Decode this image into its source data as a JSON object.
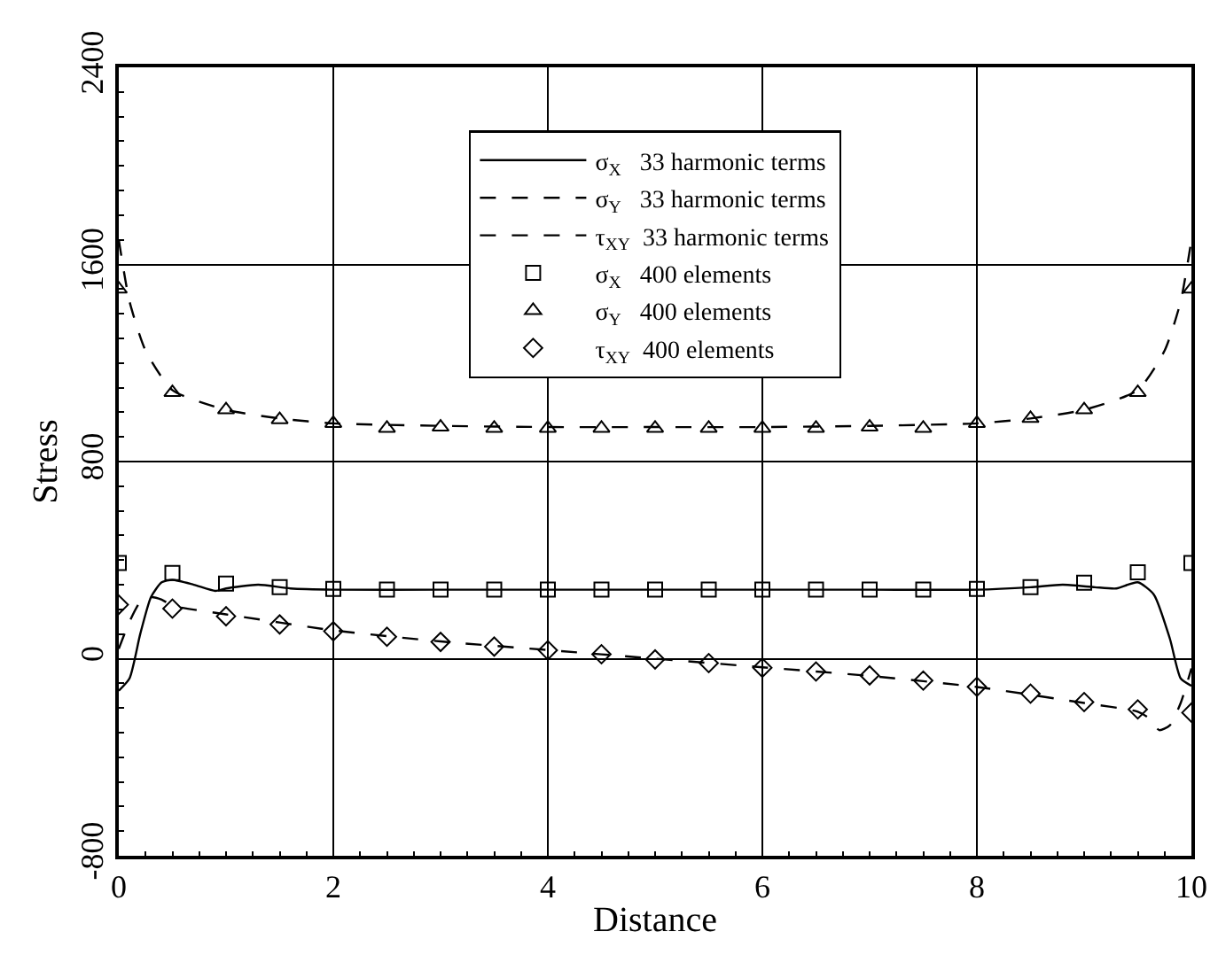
{
  "chart_data": {
    "type": "line",
    "xlabel": "Distance",
    "ylabel": "Stress",
    "xlim": [
      0,
      10
    ],
    "xticks": [
      0,
      2,
      4,
      6,
      8,
      10
    ],
    "ylim": [
      -800,
      2400
    ],
    "yticks": [
      -800,
      0,
      800,
      1600,
      2400
    ],
    "grid": true,
    "legend": "top",
    "series": [
      {
        "name": "σ$_{X}$   33 harmonic terms",
        "color": "#000000",
        "line_style": "solid",
        "marker": "none",
        "x": [
          0,
          0.1,
          0.2,
          0.3,
          0.4,
          0.5,
          0.7,
          0.9,
          1,
          1.3,
          1.6,
          2,
          3,
          4,
          5,
          6,
          7,
          8,
          8.5,
          8.8,
          9.1,
          9.3,
          9.5,
          9.65,
          9.8,
          9.9,
          10
        ],
        "values": [
          -130,
          -80,
          100,
          250,
          310,
          320,
          300,
          275,
          285,
          300,
          285,
          280,
          280,
          280,
          280,
          280,
          280,
          280,
          290,
          300,
          290,
          285,
          310,
          260,
          80,
          -80,
          -110
        ]
      },
      {
        "name": "σ$_{Y}$   33 harmonic terms",
        "color": "#000000",
        "line_style": "dashed",
        "marker": "none",
        "x": [
          0,
          0.1,
          0.25,
          0.5,
          1,
          1.5,
          2,
          3,
          4,
          5,
          6,
          7,
          8,
          8.5,
          9,
          9.5,
          9.75,
          9.9,
          10
        ],
        "values": [
          1700,
          1450,
          1250,
          1090,
          1010,
          975,
          955,
          945,
          940,
          940,
          940,
          945,
          955,
          975,
          1010,
          1090,
          1250,
          1450,
          1700
        ]
      },
      {
        "name": "τ$_{XY}$  33 harmonic terms",
        "color": "#000000",
        "line_style": "dashed",
        "marker": "none",
        "x": [
          0,
          0.1,
          0.2,
          0.3,
          0.4,
          0.5,
          1,
          2,
          3,
          4,
          5,
          6,
          7,
          8,
          9,
          9.5,
          9.6,
          9.7,
          9.8,
          9.9,
          10
        ],
        "values": [
          40,
          150,
          230,
          250,
          240,
          215,
          180,
          115,
          70,
          35,
          0,
          -35,
          -70,
          -115,
          -180,
          -215,
          -240,
          -290,
          -270,
          -180,
          -40
        ]
      },
      {
        "name": "σ$_{X}$   400 elements",
        "color": "#000000",
        "type": "scatter",
        "marker": "square",
        "x": [
          0,
          0.5,
          1,
          1.5,
          2,
          2.5,
          3,
          3.5,
          4,
          4.5,
          5,
          5.5,
          6,
          6.5,
          7,
          7.5,
          8,
          8.5,
          9,
          9.5,
          10
        ],
        "values": [
          388,
          348,
          305,
          290,
          283,
          280,
          280,
          280,
          280,
          280,
          280,
          280,
          280,
          280,
          280,
          280,
          283,
          290,
          308,
          351,
          388
        ]
      },
      {
        "name": "σ$_{Y}$   400 elements",
        "color": "#000000",
        "type": "scatter",
        "marker": "triangle",
        "x": [
          0,
          0.5,
          1,
          1.5,
          2,
          2.5,
          3,
          3.5,
          4,
          4.5,
          5,
          5.5,
          6,
          6.5,
          7,
          7.5,
          8,
          8.5,
          9,
          9.5,
          10
        ],
        "values": [
          1500,
          1080,
          1010,
          970,
          955,
          935,
          940,
          935,
          935,
          935,
          935,
          935,
          935,
          935,
          940,
          935,
          955,
          975,
          1010,
          1080,
          1500
        ]
      },
      {
        "name": "τ$_{XY}$  400 elements",
        "color": "#000000",
        "type": "scatter",
        "marker": "diamond",
        "x": [
          0,
          0.5,
          1,
          1.5,
          2,
          2.5,
          3,
          3.5,
          4,
          4.5,
          5,
          5.5,
          6,
          6.5,
          7,
          7.5,
          8,
          8.5,
          9,
          9.5,
          10
        ],
        "values": [
          219,
          203,
          172,
          139,
          111,
          89,
          68,
          49,
          34,
          18,
          -3,
          -18,
          -37,
          -52,
          -68,
          -89,
          -114,
          -142,
          -176,
          -206,
          -219
        ]
      }
    ]
  }
}
